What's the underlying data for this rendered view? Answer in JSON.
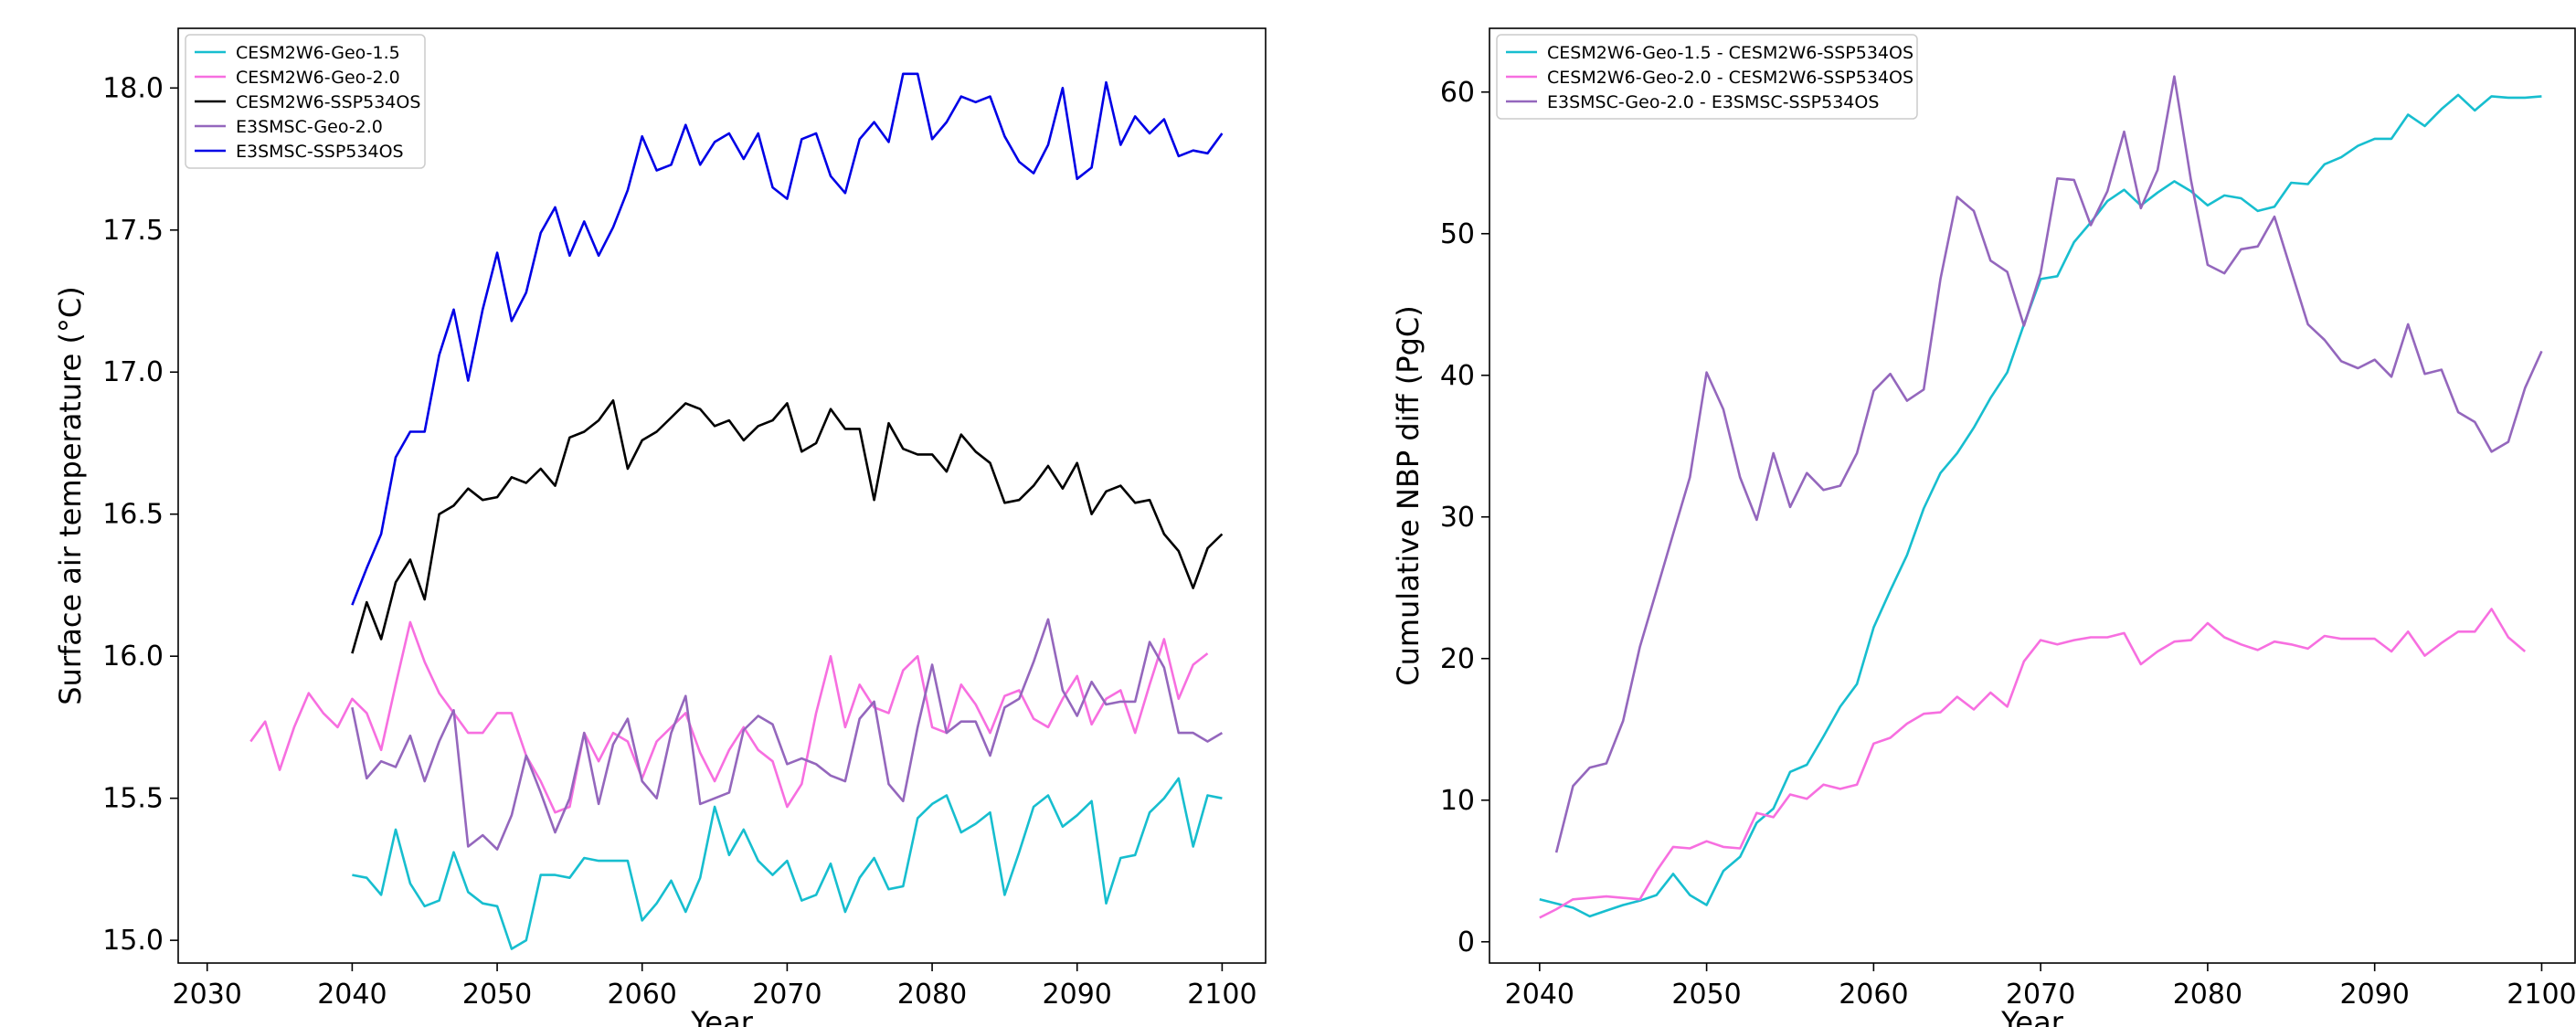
{
  "colors": {
    "cyan": "#17becf",
    "pink": "#f76fe0",
    "black": "#000000",
    "purple": "#9467bd",
    "blue": "#0000e6",
    "frame": "#000000",
    "legend_border": "#cccccc"
  },
  "chart_data": [
    {
      "type": "line",
      "xlabel": "Year",
      "ylabel": "Surface air temperature (°C)",
      "xlim": [
        2028,
        2103
      ],
      "ylim": [
        14.92,
        18.21
      ],
      "xticks": [
        2030,
        2040,
        2050,
        2060,
        2070,
        2080,
        2090,
        2100
      ],
      "yticks": [
        15.0,
        15.5,
        16.0,
        16.5,
        17.0,
        17.5,
        18.0
      ],
      "ytick_labels": [
        "15.0",
        "15.5",
        "16.0",
        "16.5",
        "17.0",
        "17.5",
        "18.0"
      ],
      "grid": false,
      "legend_position": "upper-left",
      "series": [
        {
          "name": "CESM2W6-Geo-1.5",
          "color": "cyan",
          "x_start": 2040,
          "values": [
            15.23,
            15.22,
            15.16,
            15.39,
            15.2,
            15.12,
            15.14,
            15.31,
            15.17,
            15.13,
            15.12,
            14.97,
            15.0,
            15.23,
            15.23,
            15.22,
            15.29,
            15.28,
            15.28,
            15.28,
            15.07,
            15.13,
            15.21,
            15.1,
            15.22,
            15.47,
            15.3,
            15.39,
            15.28,
            15.23,
            15.28,
            15.14,
            15.16,
            15.27,
            15.1,
            15.22,
            15.29,
            15.18,
            15.19,
            15.43,
            15.48,
            15.51,
            15.38,
            15.41,
            15.45,
            15.16,
            15.31,
            15.47,
            15.51,
            15.4,
            15.44,
            15.49,
            15.13,
            15.29,
            15.3,
            15.45,
            15.5,
            15.57,
            15.33,
            15.51,
            15.5
          ]
        },
        {
          "name": "CESM2W6-Geo-2.0",
          "color": "pink",
          "x_start": 2033,
          "values": [
            15.7,
            15.77,
            15.6,
            15.75,
            15.87,
            15.8,
            15.75,
            15.85,
            15.8,
            15.67,
            15.9,
            16.12,
            15.98,
            15.87,
            15.8,
            15.73,
            15.73,
            15.8,
            15.8,
            15.65,
            15.56,
            15.45,
            15.47,
            15.73,
            15.63,
            15.73,
            15.7,
            15.57,
            15.7,
            15.75,
            15.8,
            15.66,
            15.56,
            15.67,
            15.75,
            15.67,
            15.63,
            15.47,
            15.55,
            15.8,
            16.0,
            15.75,
            15.9,
            15.82,
            15.8,
            15.95,
            16.0,
            15.75,
            15.73,
            15.9,
            15.83,
            15.73,
            15.86,
            15.88,
            15.78,
            15.75,
            15.85,
            15.93,
            15.76,
            15.85,
            15.88,
            15.73,
            15.9,
            16.06,
            15.85,
            15.97,
            16.01
          ]
        },
        {
          "name": "CESM2W6-SSP534OS",
          "color": "black",
          "x_start": 2040,
          "values": [
            16.01,
            16.19,
            16.06,
            16.26,
            16.34,
            16.2,
            16.5,
            16.53,
            16.59,
            16.55,
            16.56,
            16.63,
            16.61,
            16.66,
            16.6,
            16.77,
            16.79,
            16.83,
            16.9,
            16.66,
            16.76,
            16.79,
            16.84,
            16.89,
            16.87,
            16.81,
            16.83,
            16.76,
            16.81,
            16.83,
            16.89,
            16.72,
            16.75,
            16.87,
            16.8,
            16.8,
            16.55,
            16.82,
            16.73,
            16.71,
            16.71,
            16.65,
            16.78,
            16.72,
            16.68,
            16.54,
            16.55,
            16.6,
            16.67,
            16.59,
            16.68,
            16.5,
            16.58,
            16.6,
            16.54,
            16.55,
            16.43,
            16.37,
            16.24,
            16.38,
            16.43
          ]
        },
        {
          "name": "E3SMSC-Geo-2.0",
          "color": "purple",
          "x_start": 2040,
          "values": [
            15.82,
            15.57,
            15.63,
            15.61,
            15.72,
            15.56,
            15.7,
            15.81,
            15.33,
            15.37,
            15.32,
            15.44,
            15.65,
            15.52,
            15.38,
            15.5,
            15.73,
            15.48,
            15.69,
            15.78,
            15.56,
            15.5,
            15.73,
            15.86,
            15.48,
            15.5,
            15.52,
            15.74,
            15.79,
            15.76,
            15.62,
            15.64,
            15.62,
            15.58,
            15.56,
            15.78,
            15.84,
            15.55,
            15.49,
            15.75,
            15.97,
            15.73,
            15.77,
            15.77,
            15.65,
            15.82,
            15.85,
            15.98,
            16.13,
            15.88,
            15.79,
            15.91,
            15.83,
            15.84,
            15.84,
            16.05,
            15.96,
            15.73,
            15.73,
            15.7,
            15.73
          ]
        },
        {
          "name": "E3SMSC-SSP534OS",
          "color": "blue",
          "x_start": 2040,
          "values": [
            16.18,
            16.31,
            16.43,
            16.7,
            16.79,
            16.79,
            17.06,
            17.22,
            16.97,
            17.22,
            17.42,
            17.18,
            17.28,
            17.49,
            17.58,
            17.41,
            17.53,
            17.41,
            17.51,
            17.64,
            17.83,
            17.71,
            17.73,
            17.87,
            17.73,
            17.81,
            17.84,
            17.75,
            17.84,
            17.65,
            17.61,
            17.82,
            17.84,
            17.69,
            17.63,
            17.82,
            17.88,
            17.81,
            18.05,
            18.05,
            17.82,
            17.88,
            17.97,
            17.95,
            17.97,
            17.83,
            17.74,
            17.7,
            17.8,
            18.0,
            17.68,
            17.72,
            18.02,
            17.8,
            17.9,
            17.84,
            17.89,
            17.76,
            17.78,
            17.77,
            17.84
          ]
        }
      ]
    },
    {
      "type": "line",
      "xlabel": "Year",
      "ylabel": "Cumulative NBP diff (PgC)",
      "xlim": [
        2037,
        2102
      ],
      "ylim": [
        -1.5,
        64.5
      ],
      "xticks": [
        2040,
        2050,
        2060,
        2070,
        2080,
        2090,
        2100
      ],
      "yticks": [
        0,
        10,
        20,
        30,
        40,
        50,
        60
      ],
      "ytick_labels": [
        "0",
        "10",
        "20",
        "30",
        "40",
        "50",
        "60"
      ],
      "grid": false,
      "legend_position": "upper-left",
      "series": [
        {
          "name": "CESM2W6-Geo-1.5 - CESM2W6-SSP534OS",
          "color": "cyan",
          "x_start": 2040,
          "values": [
            3.0,
            2.7,
            2.4,
            1.8,
            2.2,
            2.6,
            2.9,
            3.3,
            4.8,
            3.3,
            2.6,
            5.0,
            6.0,
            8.4,
            9.4,
            12.0,
            12.5,
            14.5,
            16.6,
            18.2,
            22.2,
            24.8,
            27.3,
            30.6,
            33.1,
            34.5,
            36.3,
            38.4,
            40.2,
            43.6,
            46.8,
            47.0,
            49.4,
            50.8,
            52.3,
            53.1,
            52.0,
            52.9,
            53.7,
            53.0,
            52.0,
            52.7,
            52.5,
            51.6,
            51.9,
            53.6,
            53.5,
            54.9,
            55.4,
            56.2,
            56.7,
            56.7,
            58.4,
            57.6,
            58.8,
            59.8,
            58.7,
            59.7,
            59.6,
            59.6,
            59.7
          ]
        },
        {
          "name": "CESM2W6-Geo-2.0 - CESM2W6-SSP534OS",
          "color": "pink",
          "x_start": 2040,
          "values": [
            1.7,
            2.3,
            3.0,
            3.1,
            3.2,
            3.1,
            3.0,
            5.0,
            6.7,
            6.6,
            7.1,
            6.7,
            6.6,
            9.1,
            8.8,
            10.4,
            10.1,
            11.1,
            10.8,
            11.1,
            14.0,
            14.4,
            15.4,
            16.1,
            16.2,
            17.3,
            16.4,
            17.6,
            16.6,
            19.8,
            21.3,
            21.0,
            21.3,
            21.5,
            21.5,
            21.8,
            19.6,
            20.5,
            21.2,
            21.3,
            22.5,
            21.5,
            21.0,
            20.6,
            21.2,
            21.0,
            20.7,
            21.6,
            21.4,
            21.4,
            21.4,
            20.5,
            21.9,
            20.2,
            21.1,
            21.9,
            21.9,
            23.5,
            21.5,
            20.5
          ]
        },
        {
          "name": "E3SMSC-Geo-2.0 - E3SMSC-SSP534OS",
          "color": "purple",
          "x_start": 2041,
          "values": [
            6.3,
            11.0,
            12.3,
            12.6,
            15.6,
            20.8,
            24.8,
            28.8,
            32.8,
            40.2,
            37.6,
            32.8,
            29.8,
            34.5,
            30.7,
            33.1,
            31.9,
            32.2,
            34.5,
            38.9,
            40.1,
            38.2,
            39.0,
            46.8,
            52.6,
            51.6,
            48.1,
            47.3,
            43.5,
            47.2,
            53.9,
            53.8,
            50.6,
            53.0,
            57.2,
            51.8,
            54.5,
            61.1,
            53.8,
            47.8,
            47.2,
            48.9,
            49.1,
            51.2,
            47.4,
            43.6,
            42.5,
            41.0,
            40.5,
            41.1,
            39.9,
            43.6,
            40.1,
            40.4,
            37.4,
            36.7,
            34.6,
            35.3,
            39.1,
            41.7
          ]
        }
      ]
    }
  ]
}
